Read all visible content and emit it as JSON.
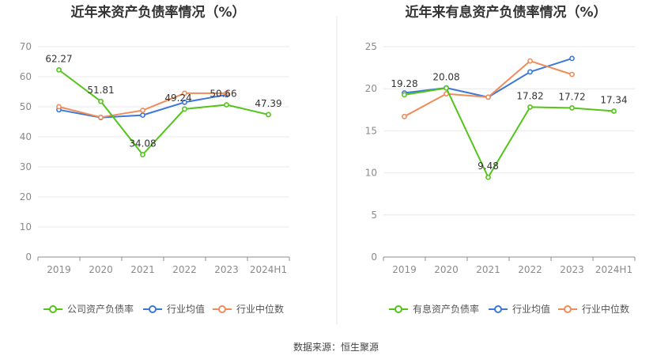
{
  "chart_data": [
    {
      "type": "line",
      "title": "近年来资产负债率情况（%）",
      "categories": [
        "2019",
        "2020",
        "2021",
        "2022",
        "2023",
        "2024H1"
      ],
      "ylim": [
        0,
        70
      ],
      "yticks": [
        0,
        10,
        20,
        30,
        40,
        50,
        60,
        70
      ],
      "grid": true,
      "legend_position": "bottom",
      "series": [
        {
          "name": "公司资产负债率",
          "color": "#52c41a",
          "values": [
            62.27,
            51.81,
            34.08,
            49.24,
            50.66,
            47.39
          ],
          "labels": [
            "62.27",
            "51.81",
            "34.08",
            "49.24",
            "50.66",
            "47.39"
          ]
        },
        {
          "name": "行业均值",
          "color": "#3b78d8",
          "values": [
            49.0,
            46.4,
            47.2,
            51.5,
            54.0,
            null
          ]
        },
        {
          "name": "行业中位数",
          "color": "#f08c5a",
          "values": [
            50.0,
            46.5,
            48.8,
            54.5,
            54.5,
            null
          ]
        }
      ]
    },
    {
      "type": "line",
      "title": "近年来有息资产负债率情况（%）",
      "categories": [
        "2019",
        "2020",
        "2021",
        "2022",
        "2023",
        "2024H1"
      ],
      "ylim": [
        0,
        25
      ],
      "yticks": [
        0,
        5,
        10,
        15,
        20,
        25
      ],
      "grid": true,
      "legend_position": "bottom",
      "series": [
        {
          "name": "有息资产负债率",
          "color": "#52c41a",
          "values": [
            19.28,
            20.08,
            9.48,
            17.82,
            17.72,
            17.34
          ],
          "labels": [
            "19.28",
            "20.08",
            "9.48",
            "17.82",
            "17.72",
            "17.34"
          ]
        },
        {
          "name": "行业均值",
          "color": "#3b78d8",
          "values": [
            19.5,
            20.1,
            19.0,
            22.0,
            23.6,
            null
          ]
        },
        {
          "name": "行业中位数",
          "color": "#f08c5a",
          "values": [
            16.7,
            19.4,
            19.0,
            23.3,
            21.7,
            null
          ]
        }
      ]
    }
  ],
  "source": "数据来源：恒生聚源"
}
